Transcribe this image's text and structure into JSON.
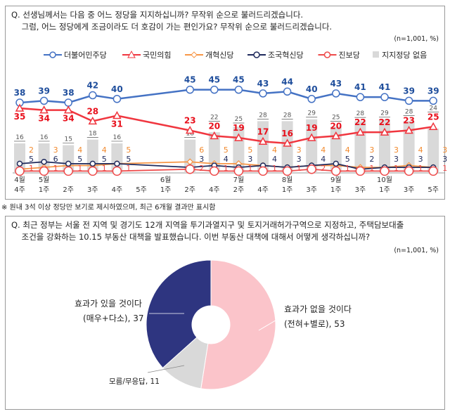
{
  "q1": {
    "line1": "Q. 선생님께서는 다음 중 어느 정당을 지지하십니까? 무작위 순으로 불러드리겠습니다.",
    "line2": "    그럼, 어느 정당에게 조금이라도 더 호감이 가는 편인가요? 무작위 순으로 불러드리겠습니다.",
    "sample": "(n=1,001, %)"
  },
  "footnote": "※ 원내 3석 이상 정당만 보기로 제시하였으며, 최근 6개월 결과만 표시함",
  "chart_data": [
    {
      "type": "line",
      "x_labels": [
        [
          "4월",
          "4주"
        ],
        [
          "5월",
          "1주"
        ],
        [
          "",
          "2주"
        ],
        [
          "",
          "3주"
        ],
        [
          "",
          "4주"
        ],
        [
          "",
          "5주"
        ],
        [
          "6월",
          "1주"
        ],
        [
          "",
          "2주"
        ],
        [
          "",
          "4주"
        ],
        [
          "7월",
          "2주"
        ],
        [
          "",
          "4주"
        ],
        [
          "8월",
          "1주"
        ],
        [
          "",
          "3주"
        ],
        [
          "9월",
          "1주"
        ],
        [
          "",
          "3주"
        ],
        [
          "10월",
          "1주"
        ],
        [
          "",
          "3주"
        ],
        [
          "",
          "5주"
        ]
      ],
      "data_slots": [
        0,
        1,
        2,
        3,
        4,
        7,
        8,
        9,
        10,
        11,
        12,
        13,
        14,
        15,
        16,
        17
      ],
      "legend_placement": "top",
      "series": [
        {
          "name": "더불어민주당",
          "type": "line",
          "marker": "circle",
          "color": "#4472c4",
          "label_color": "#1f4e9c",
          "values": [
            38,
            39,
            38,
            42,
            40,
            45,
            45,
            45,
            43,
            44,
            40,
            43,
            41,
            41,
            39,
            39
          ]
        },
        {
          "name": "국민의힘",
          "type": "line",
          "marker": "triangle",
          "color": "#f0363f",
          "label_color": "#e8101c",
          "values": [
            35,
            34,
            34,
            28,
            31,
            23,
            20,
            19,
            17,
            16,
            19,
            20,
            22,
            22,
            23,
            25
          ]
        },
        {
          "name": "개혁신당",
          "type": "line",
          "marker": "diamond",
          "color": "#f79646",
          "label_color": "#f28a2e",
          "values": [
            2,
            3,
            4,
            4,
            5,
            6,
            5,
            5,
            4,
            3,
            4,
            4,
            3,
            3,
            4,
            3
          ]
        },
        {
          "name": "조국혁신당",
          "type": "line",
          "marker": "circle",
          "color": "#1f2a5c",
          "label_color": "#1f2a5c",
          "values": [
            5,
            6,
            5,
            5,
            5,
            3,
            4,
            3,
            4,
            3,
            4,
            5,
            2,
            3,
            3,
            3
          ]
        },
        {
          "name": "진보당",
          "type": "line",
          "marker": "circle-large",
          "color": "#ee4a4a",
          "label_color": "#ee4a4a",
          "values": [
            1,
            1,
            1,
            1,
            1,
            2,
            1,
            1,
            1,
            1,
            2,
            1,
            1,
            1,
            1,
            1
          ]
        },
        {
          "name": "지지정당 없음",
          "type": "bar",
          "color": "#d9d9d9",
          "values": [
            16,
            16,
            15,
            18,
            16,
            18,
            22,
            25,
            28,
            28,
            29,
            25,
            28,
            29,
            28,
            24
          ]
        }
      ]
    },
    {
      "type": "pie",
      "donut": true,
      "slices": [
        {
          "label": "효과가 없을 것이다",
          "sub": "(전혀+별로), 53",
          "value": 53,
          "color": "#fbc4ca"
        },
        {
          "label": "모름/무응답, 11",
          "sub": "",
          "value": 11,
          "color": "#d9d9d9"
        },
        {
          "label": "효과가 있을 것이다",
          "sub": "(매우+다소), 37",
          "value": 37,
          "color": "#2e3580"
        }
      ]
    }
  ],
  "q2": {
    "line1": "Q. 최근 정부는 서울 전 지역 및 경기도 12개 지역을 투기과열지구 및 토지거래허가구역으로 지정하고, 주택담보대출",
    "line2": "    조건을 강화하는 10.15 부동산 대책을 발표했습니다. 이번 부동산 대책에 대해서 어떻게 생각하십니까?",
    "sample": "(n=1,001, %)"
  }
}
